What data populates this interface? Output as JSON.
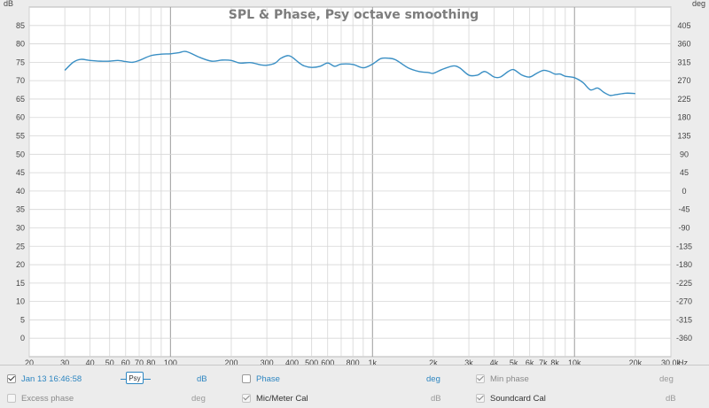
{
  "chart_data": {
    "type": "line",
    "title": "SPL & Phase, Psy octave smoothing",
    "y_left_unit": "dB",
    "y_right_unit": "deg",
    "x_unit": "Hz",
    "x_scale": "log",
    "xlim": [
      20,
      30000
    ],
    "ylim_left": [
      -5,
      90
    ],
    "ylim_right": [
      -405,
      450
    ],
    "grid": true,
    "x_ticks": [
      {
        "value": 20,
        "label": "20"
      },
      {
        "value": 30,
        "label": "30"
      },
      {
        "value": 40,
        "label": "40"
      },
      {
        "value": 50,
        "label": "50"
      },
      {
        "value": 60,
        "label": "60"
      },
      {
        "value": 70,
        "label": "70"
      },
      {
        "value": 80,
        "label": "80"
      },
      {
        "value": 100,
        "label": "100"
      },
      {
        "value": 200,
        "label": "200"
      },
      {
        "value": 300,
        "label": "300"
      },
      {
        "value": 400,
        "label": "400"
      },
      {
        "value": 500,
        "label": "500"
      },
      {
        "value": 600,
        "label": "600"
      },
      {
        "value": 800,
        "label": "800"
      },
      {
        "value": 1000,
        "label": "1k"
      },
      {
        "value": 2000,
        "label": "2k"
      },
      {
        "value": 3000,
        "label": "3k"
      },
      {
        "value": 4000,
        "label": "4k"
      },
      {
        "value": 5000,
        "label": "5k"
      },
      {
        "value": 6000,
        "label": "6k"
      },
      {
        "value": 7000,
        "label": "7k"
      },
      {
        "value": 8000,
        "label": "8k"
      },
      {
        "value": 10000,
        "label": "10k"
      },
      {
        "value": 20000,
        "label": "20k"
      },
      {
        "value": 30000,
        "label": "30.0k"
      }
    ],
    "y_left_ticks": [
      0,
      5,
      10,
      15,
      20,
      25,
      30,
      35,
      40,
      45,
      50,
      55,
      60,
      65,
      70,
      75,
      80,
      85
    ],
    "y_right_ticks": [
      405,
      360,
      315,
      270,
      225,
      180,
      135,
      90,
      45,
      0,
      -45,
      -90,
      -135,
      -180,
      -225,
      -270,
      -315,
      -360
    ],
    "series": [
      {
        "color": "#3a8fc4",
        "x": [
          30,
          33,
          36,
          40,
          45,
          50,
          55,
          60,
          65,
          70,
          80,
          90,
          100,
          110,
          120,
          140,
          160,
          180,
          200,
          220,
          250,
          280,
          300,
          330,
          350,
          380,
          400,
          430,
          460,
          500,
          550,
          600,
          650,
          700,
          800,
          900,
          1000,
          1100,
          1200,
          1300,
          1500,
          1700,
          1900,
          2000,
          2200,
          2500,
          2700,
          3000,
          3300,
          3600,
          4000,
          4300,
          4700,
          5000,
          5500,
          6000,
          6500,
          7000,
          7500,
          8000,
          8500,
          9000,
          10000,
          11000,
          12000,
          13000,
          14000,
          15000,
          16000,
          18000,
          20000
        ],
        "values": [
          72.8,
          75.0,
          75.8,
          75.5,
          75.3,
          75.3,
          75.5,
          75.2,
          75.0,
          75.5,
          76.8,
          77.2,
          77.3,
          77.6,
          77.9,
          76.3,
          75.3,
          75.6,
          75.5,
          74.8,
          74.9,
          74.3,
          74.2,
          74.8,
          76.0,
          76.8,
          76.4,
          75.0,
          74.0,
          73.6,
          73.9,
          74.8,
          73.9,
          74.5,
          74.4,
          73.5,
          74.5,
          76.0,
          76.1,
          75.7,
          73.5,
          72.5,
          72.2,
          72.0,
          73.0,
          74.0,
          73.5,
          71.5,
          71.5,
          72.5,
          71.0,
          71.0,
          72.5,
          73.0,
          71.5,
          71.0,
          72.0,
          72.8,
          72.5,
          71.8,
          71.8,
          71.2,
          70.8,
          69.5,
          67.5,
          68.0,
          66.8,
          66.0,
          66.2,
          66.6,
          66.5
        ]
      }
    ]
  },
  "legend": {
    "row1": {
      "measurement_checked": true,
      "measurement_label": "Jan 13 16:46:58",
      "psy_label": "Psy",
      "spl_unit": "dB",
      "phase_checked": false,
      "phase_label": "Phase",
      "phase_unit": "deg",
      "minphase_checked": true,
      "minphase_label": "Min phase",
      "minphase_unit": "deg"
    },
    "row2": {
      "excess_checked": false,
      "excess_label": "Excess phase",
      "excess_unit": "deg",
      "mic_checked": true,
      "mic_label": "Mic/Meter Cal",
      "mic_unit": "dB",
      "sound_checked": true,
      "sound_label": "Soundcard Cal",
      "sound_unit": "dB"
    }
  }
}
